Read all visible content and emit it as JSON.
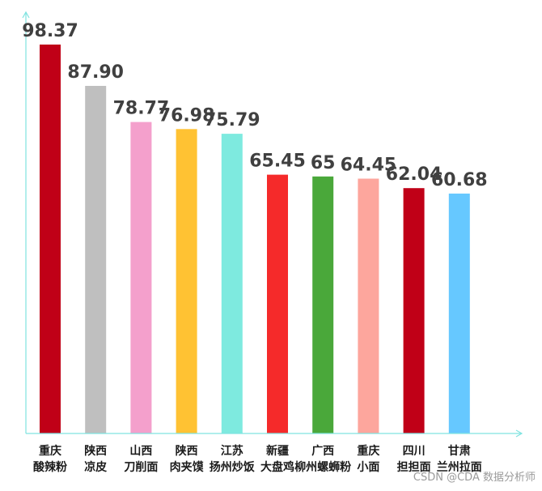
{
  "chart_data": {
    "type": "bar",
    "categories": [
      [
        "重庆",
        "酸辣粉"
      ],
      [
        "陕西",
        "凉皮"
      ],
      [
        "山西",
        "刀削面"
      ],
      [
        "陕西",
        "肉夹馍"
      ],
      [
        "江苏",
        "扬州炒饭"
      ],
      [
        "新疆",
        "大盘鸡"
      ],
      [
        "广西",
        "柳州螺蛳粉"
      ],
      [
        "重庆",
        "小面"
      ],
      [
        "四川",
        "担担面"
      ],
      [
        "甘肃",
        "兰州拉面"
      ]
    ],
    "values": [
      98.37,
      87.9,
      78.77,
      76.98,
      75.79,
      65.45,
      65,
      64.45,
      62.04,
      60.68
    ],
    "value_labels": [
      "98.37",
      "87.90",
      "78.77",
      "76.98",
      "75.79",
      "65.45",
      "65",
      "64.45",
      "62.04",
      "60.68"
    ],
    "colors": [
      "#c00017",
      "#bfbfbf",
      "#f4a0cc",
      "#ffc233",
      "#7eeadf",
      "#f52a2a",
      "#4aa83a",
      "#fda69d",
      "#c00017",
      "#66c8ff"
    ],
    "axis_color": "#7fe3e0",
    "ylim": [
      0,
      100
    ],
    "grid": false,
    "legend": "none"
  },
  "watermark": "CSDN @CDA 数据分析师"
}
